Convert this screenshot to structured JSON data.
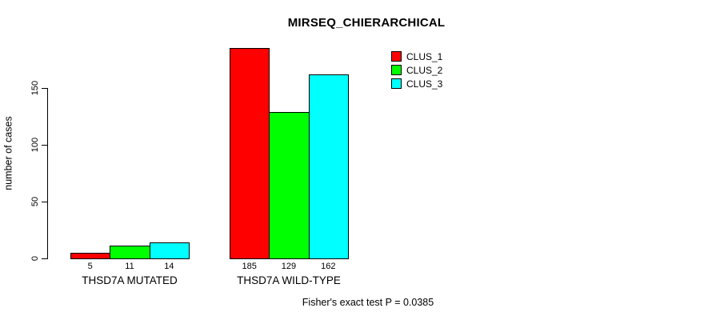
{
  "chart_data": {
    "type": "bar",
    "title": "MIRSEQ_CHIERARCHICAL",
    "categories": [
      "THSD7A MUTATED",
      "THSD7A WILD-TYPE"
    ],
    "series": [
      {
        "name": "CLUS_1",
        "color": "#FF0000",
        "values": [
          5,
          185
        ]
      },
      {
        "name": "CLUS_2",
        "color": "#00FF00",
        "values": [
          11,
          129
        ]
      },
      {
        "name": "CLUS_3",
        "color": "#00FFFF",
        "values": [
          14,
          162
        ]
      }
    ],
    "xlabel": "",
    "ylabel": "number of cases",
    "yticks": [
      0,
      50,
      100,
      150
    ],
    "ylim": [
      0,
      150
    ],
    "grid": false,
    "bar_border_color": "#000000",
    "bar_value_labels_shown": true,
    "legend": {
      "position": "top-right",
      "entries": [
        "CLUS_1",
        "CLUS_2",
        "CLUS_3"
      ]
    },
    "annotation": "Fisher's exact test P = 0.0385"
  }
}
